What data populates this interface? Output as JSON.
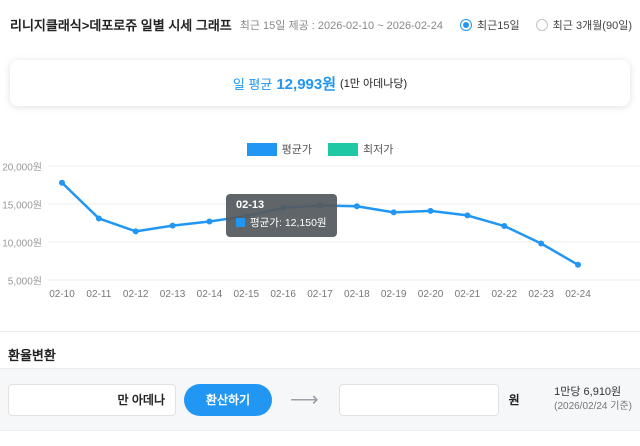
{
  "header": {
    "title": "리니지클래식>데포로쥬 일별 시세 그래프",
    "subtitle": "최근 15일 제공 : 2026-02-10 ~ 2026-02-24",
    "range_options": [
      {
        "label": "최근15일",
        "selected": true
      },
      {
        "label": "최근 3개월(90일)",
        "selected": false
      }
    ]
  },
  "summary": {
    "label": "일 평균",
    "value": "12,993원",
    "note": "(1만 아데나당)"
  },
  "chart_data": {
    "type": "line",
    "categories": [
      "02-10",
      "02-11",
      "02-12",
      "02-13",
      "02-14",
      "02-15",
      "02-16",
      "02-17",
      "02-18",
      "02-19",
      "02-20",
      "02-21",
      "02-22",
      "02-23",
      "02-24"
    ],
    "series": [
      {
        "name": "평균가",
        "color": "#2196f3",
        "values": [
          17800,
          13100,
          11400,
          12150,
          12700,
          13400,
          14500,
          14800,
          14700,
          13900,
          14100,
          13500,
          12100,
          9800,
          7000
        ]
      }
    ],
    "legend": [
      {
        "label": "평균가",
        "color": "#2196f3"
      },
      {
        "label": "최저가",
        "color": "#1fc8a5"
      }
    ],
    "ylim": [
      5000,
      20000
    ],
    "yticks": [
      20000,
      15000,
      10000,
      5000
    ],
    "ytick_labels": [
      "20,000원",
      "15,000원",
      "10,000원",
      "5,000원"
    ],
    "grid": true,
    "legend_position": "top"
  },
  "tooltip": {
    "date": "02-13",
    "line": "평균가: 12,150원",
    "color": "#2196f3"
  },
  "converter": {
    "section_title": "환율변환",
    "input_value": "",
    "input_unit": "만 아데나",
    "convert_button": "환산하기",
    "output_value": "",
    "output_unit": "원",
    "rate_line1": "1만당 6,910원",
    "rate_line2": "(2026/02/24 기준)"
  },
  "icons": {
    "arrow_right": "⟶"
  },
  "colors": {
    "accent_blue": "#2196f3",
    "teal": "#1fc8a5",
    "tooltip_bg": "#54595e"
  }
}
